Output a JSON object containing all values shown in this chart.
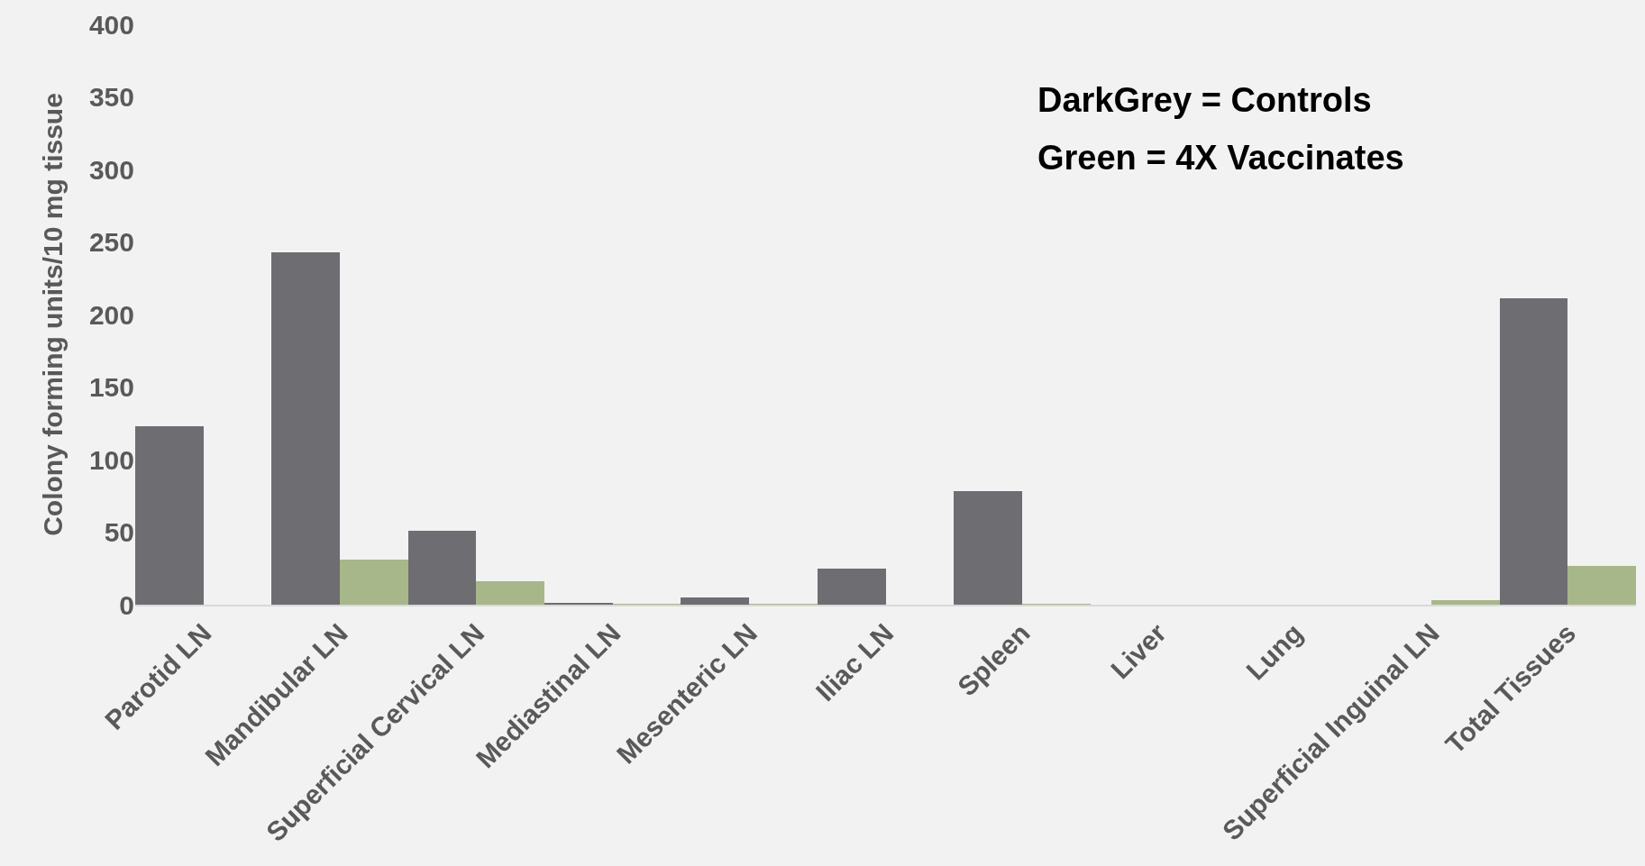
{
  "chart_data": {
    "type": "bar",
    "ylabel": "Colony forming units/10 mg tissue",
    "categories": [
      "Parotid LN",
      "Mandibular LN",
      "Superficial Cervical LN",
      "Mediastinal LN",
      "Mesenteric LN",
      "Iliac LN",
      "Spleen",
      "Liver",
      "Lung",
      "Superficial Inguinal LN",
      "Total Tissues"
    ],
    "series": [
      {
        "color": "#6e6d72",
        "values": [
          123,
          243,
          51,
          1,
          5,
          25,
          78,
          0,
          0,
          0,
          211
        ]
      },
      {
        "color": "#a7b78a",
        "values": [
          0,
          31,
          16,
          0.5,
          0.5,
          0,
          0.5,
          0,
          0,
          3,
          27
        ]
      }
    ],
    "ylim": [
      0,
      400
    ],
    "yticks": [
      0,
      50,
      100,
      150,
      200,
      250,
      300,
      350,
      400
    ],
    "annotations": [
      "DarkGrey = Controls",
      "Green = 4X Vaccinates"
    ]
  }
}
